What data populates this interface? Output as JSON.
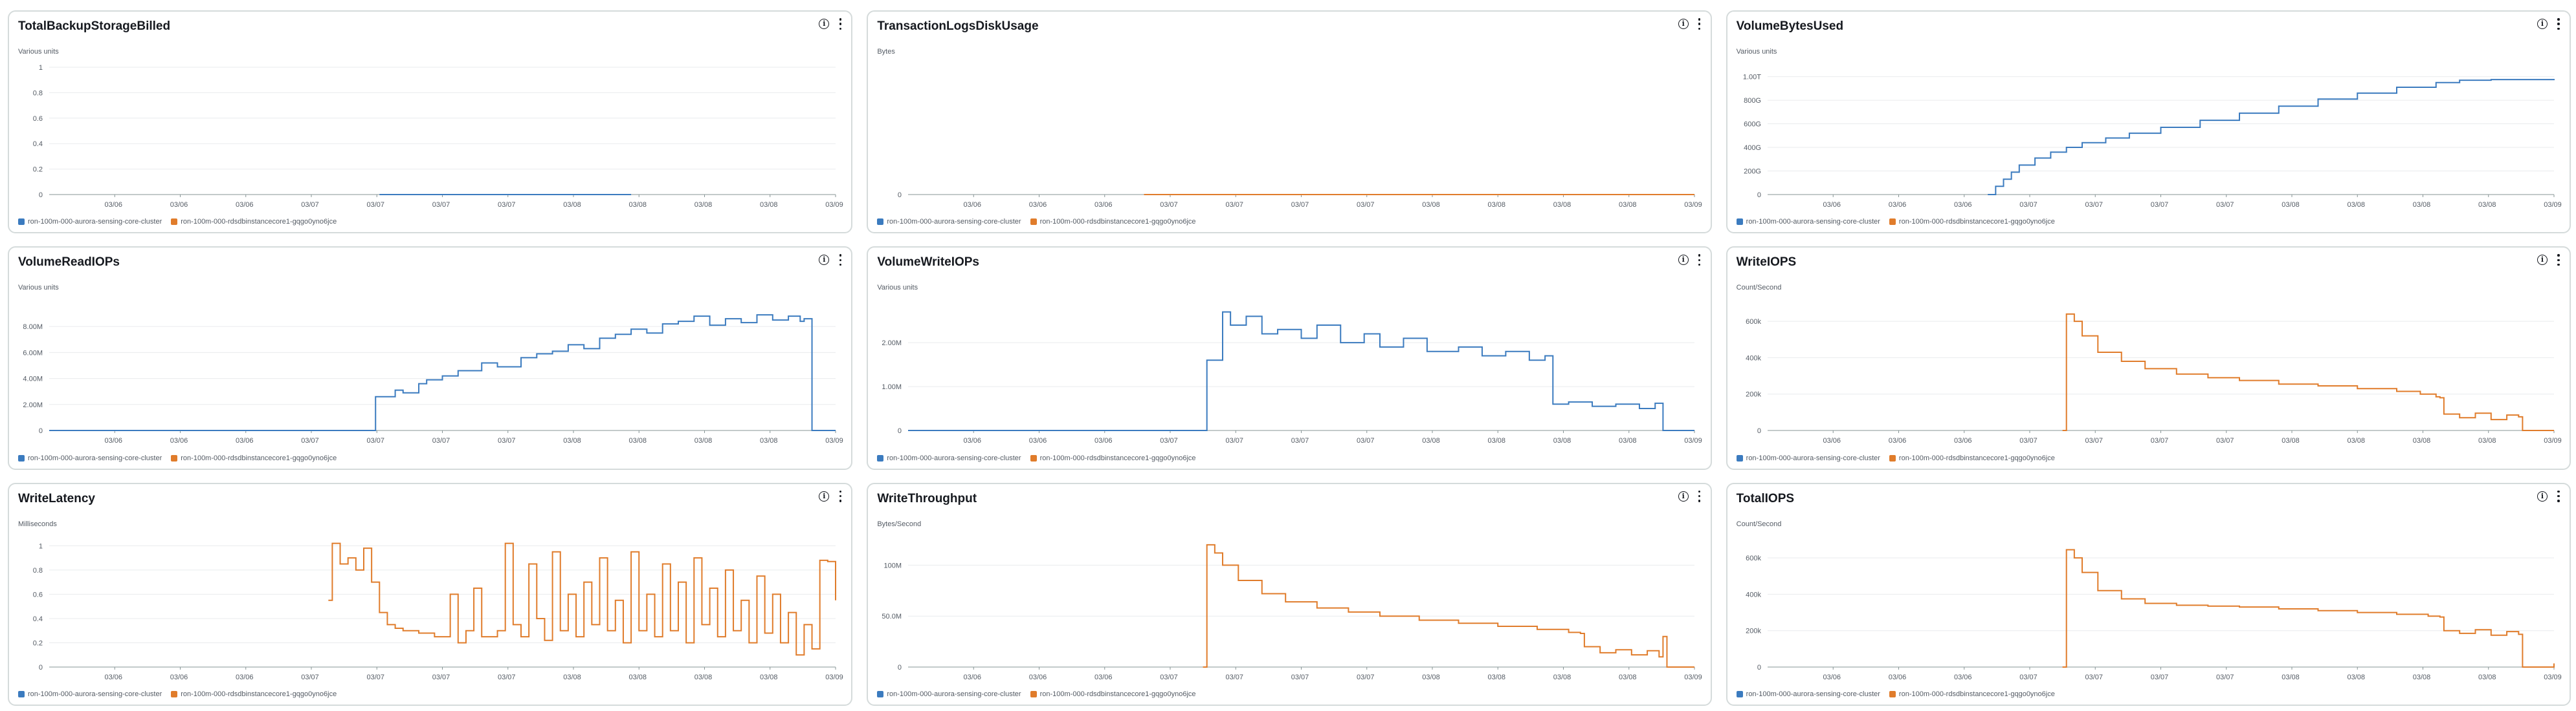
{
  "colors": {
    "series_blue": "#3b7bbf",
    "series_orange": "#e07c2b"
  },
  "legend": [
    {
      "label": "ron-100m-000-aurora-sensing-core-cluster",
      "color": "#3b7bbf"
    },
    {
      "label": "ron-100m-000-rdsdbinstancecore1-gqgo0yno6jce",
      "color": "#e07c2b"
    }
  ],
  "x_ticks": [
    "03/06",
    "03/06",
    "03/06",
    "03/07",
    "03/07",
    "03/07",
    "03/07",
    "03/08",
    "03/08",
    "03/08",
    "03/08",
    "03/09"
  ],
  "panels": [
    {
      "title": "TotalBackupStorageBilled",
      "unit": "Various units",
      "chart_data": {
        "type": "line",
        "ylim": [
          0,
          1
        ],
        "y_ticks": [
          "0",
          "0.2",
          "0.4",
          "0.6",
          "0.8",
          "1"
        ],
        "series": [
          {
            "name": "ron-100m-000-aurora-sensing-core-cluster",
            "color": "#3b7bbf",
            "x": [
              0.42,
              0.74
            ],
            "y": [
              0,
              0
            ]
          }
        ]
      }
    },
    {
      "title": "TransactionLogsDiskUsage",
      "unit": "Bytes",
      "chart_data": {
        "type": "line",
        "ylim": [
          0,
          1
        ],
        "y_ticks": [
          "0"
        ],
        "series": [
          {
            "name": "ron-100m-000-rdsdbinstancecore1-gqgo0yno6jce",
            "color": "#e07c2b",
            "x": [
              0.3,
              1.0
            ],
            "y": [
              0,
              0
            ]
          }
        ]
      }
    },
    {
      "title": "VolumeBytesUsed",
      "unit": "Various units",
      "chart_data": {
        "type": "line",
        "ylim": [
          0,
          1.08
        ],
        "y_ticks": [
          "0",
          "200G",
          "400G",
          "600G",
          "800G",
          "1.00T"
        ],
        "series": [
          {
            "name": "ron-100m-000-aurora-sensing-core-cluster",
            "color": "#3b7bbf",
            "x": [
              0.28,
              0.29,
              0.3,
              0.31,
              0.32,
              0.34,
              0.36,
              0.38,
              0.4,
              0.43,
              0.46,
              0.5,
              0.55,
              0.6,
              0.65,
              0.7,
              0.75,
              0.8,
              0.85,
              0.88,
              0.92,
              0.96,
              1.0
            ],
            "y": [
              0,
              0.07,
              0.13,
              0.19,
              0.25,
              0.31,
              0.36,
              0.4,
              0.44,
              0.48,
              0.52,
              0.57,
              0.63,
              0.69,
              0.75,
              0.81,
              0.86,
              0.91,
              0.95,
              0.97,
              0.975,
              0.975,
              0.97
            ]
          }
        ]
      }
    },
    {
      "title": "VolumeReadIOPs",
      "unit": "Various units",
      "chart_data": {
        "type": "line",
        "ylim": [
          0,
          9.8
        ],
        "y_ticks": [
          "0",
          "2.00M",
          "4.00M",
          "6.00M",
          "8.00M"
        ],
        "series": [
          {
            "name": "ron-100m-000-aurora-sensing-core-cluster",
            "color": "#3b7bbf",
            "x": [
              0.0,
              0.41,
              0.415,
              0.44,
              0.45,
              0.47,
              0.48,
              0.5,
              0.52,
              0.55,
              0.57,
              0.6,
              0.62,
              0.64,
              0.66,
              0.68,
              0.7,
              0.72,
              0.74,
              0.76,
              0.78,
              0.8,
              0.82,
              0.84,
              0.86,
              0.88,
              0.9,
              0.92,
              0.94,
              0.955,
              0.96,
              0.97,
              1.0
            ],
            "y": [
              0,
              0,
              2.6,
              3.1,
              2.9,
              3.6,
              3.9,
              4.2,
              4.6,
              5.2,
              4.9,
              5.6,
              5.9,
              6.1,
              6.6,
              6.3,
              7.1,
              7.4,
              7.8,
              7.5,
              8.2,
              8.4,
              8.8,
              8.1,
              8.6,
              8.3,
              8.9,
              8.5,
              8.8,
              8.4,
              8.6,
              0,
              0
            ]
          }
        ]
      }
    },
    {
      "title": "VolumeWriteIOPs",
      "unit": "Various units",
      "chart_data": {
        "type": "line",
        "ylim": [
          0,
          2.9
        ],
        "y_ticks": [
          "0",
          "1.00M",
          "2.00M"
        ],
        "series": [
          {
            "name": "ron-100m-000-aurora-sensing-core-cluster",
            "color": "#3b7bbf",
            "x": [
              0.0,
              0.375,
              0.38,
              0.4,
              0.41,
              0.43,
              0.45,
              0.47,
              0.5,
              0.52,
              0.55,
              0.58,
              0.6,
              0.63,
              0.66,
              0.7,
              0.73,
              0.76,
              0.79,
              0.81,
              0.82,
              0.84,
              0.87,
              0.9,
              0.93,
              0.95,
              0.96,
              1.0
            ],
            "y": [
              0,
              0,
              1.6,
              2.7,
              2.4,
              2.6,
              2.2,
              2.3,
              2.1,
              2.4,
              2.0,
              2.2,
              1.9,
              2.1,
              1.8,
              1.9,
              1.7,
              1.8,
              1.6,
              1.7,
              0.6,
              0.65,
              0.55,
              0.6,
              0.5,
              0.62,
              0,
              0
            ]
          }
        ]
      }
    },
    {
      "title": "WriteIOPS",
      "unit": "Count/Second",
      "chart_data": {
        "type": "line",
        "ylim": [
          0,
          700
        ],
        "y_ticks": [
          "0",
          "200k",
          "400k",
          "600k"
        ],
        "series": [
          {
            "name": "ron-100m-000-rdsdbinstancecore1-gqgo0yno6jce",
            "color": "#e07c2b",
            "x": [
              0.375,
              0.38,
              0.39,
              0.4,
              0.42,
              0.45,
              0.48,
              0.52,
              0.56,
              0.6,
              0.65,
              0.7,
              0.75,
              0.8,
              0.83,
              0.85,
              0.855,
              0.86,
              0.88,
              0.9,
              0.92,
              0.94,
              0.955,
              0.96,
              1.0
            ],
            "y": [
              0,
              640,
              600,
              520,
              430,
              380,
              340,
              310,
              290,
              275,
              255,
              245,
              230,
              215,
              200,
              185,
              180,
              90,
              70,
              95,
              60,
              85,
              75,
              0,
              0
            ]
          }
        ]
      }
    },
    {
      "title": "WriteLatency",
      "unit": "Milliseconds",
      "chart_data": {
        "type": "line",
        "ylim": [
          0,
          1.05
        ],
        "y_ticks": [
          "0",
          "0.2",
          "0.4",
          "0.6",
          "0.8",
          "1"
        ],
        "series": [
          {
            "name": "ron-100m-000-rdsdbinstancecore1-gqgo0yno6jce",
            "color": "#e07c2b",
            "x": [
              0.355,
              0.36,
              0.37,
              0.38,
              0.39,
              0.4,
              0.41,
              0.42,
              0.43,
              0.44,
              0.45,
              0.47,
              0.49,
              0.51,
              0.52,
              0.53,
              0.54,
              0.55,
              0.57,
              0.58,
              0.59,
              0.6,
              0.61,
              0.62,
              0.63,
              0.64,
              0.65,
              0.66,
              0.67,
              0.68,
              0.69,
              0.7,
              0.71,
              0.72,
              0.73,
              0.74,
              0.75,
              0.76,
              0.77,
              0.78,
              0.79,
              0.8,
              0.81,
              0.82,
              0.83,
              0.84,
              0.85,
              0.86,
              0.87,
              0.88,
              0.89,
              0.9,
              0.91,
              0.92,
              0.93,
              0.94,
              0.95,
              0.96,
              0.97,
              0.98,
              0.99,
              1.0
            ],
            "y": [
              0.55,
              1.02,
              0.85,
              0.9,
              0.8,
              0.98,
              0.7,
              0.45,
              0.35,
              0.32,
              0.3,
              0.28,
              0.25,
              0.6,
              0.2,
              0.3,
              0.65,
              0.25,
              0.3,
              1.02,
              0.35,
              0.25,
              0.85,
              0.4,
              0.22,
              0.95,
              0.3,
              0.6,
              0.25,
              0.7,
              0.35,
              0.9,
              0.3,
              0.55,
              0.2,
              0.95,
              0.3,
              0.6,
              0.25,
              0.85,
              0.3,
              0.7,
              0.2,
              0.9,
              0.35,
              0.65,
              0.25,
              0.8,
              0.3,
              0.55,
              0.2,
              0.75,
              0.28,
              0.6,
              0.2,
              0.45,
              0.1,
              0.35,
              0.15,
              0.88,
              0.87,
              0.55
            ]
          }
        ]
      }
    },
    {
      "title": "WriteThroughput",
      "unit": "Bytes/Second",
      "chart_data": {
        "type": "line",
        "ylim": [
          0,
          125
        ],
        "y_ticks": [
          "0",
          "50.0M",
          "100M"
        ],
        "series": [
          {
            "name": "ron-100m-000-rdsdbinstancecore1-gqgo0yno6jce",
            "color": "#e07c2b",
            "x": [
              0.375,
              0.38,
              0.39,
              0.4,
              0.42,
              0.45,
              0.48,
              0.52,
              0.56,
              0.6,
              0.65,
              0.7,
              0.75,
              0.8,
              0.84,
              0.855,
              0.86,
              0.88,
              0.9,
              0.92,
              0.94,
              0.955,
              0.96,
              0.965,
              1.0
            ],
            "y": [
              0,
              120,
              112,
              100,
              85,
              72,
              64,
              58,
              54,
              50,
              46,
              43,
              40,
              37,
              34,
              33,
              20,
              14,
              17,
              12,
              16,
              10,
              30,
              0,
              0
            ]
          }
        ]
      }
    },
    {
      "title": "TotalIOPS",
      "unit": "Count/Second",
      "chart_data": {
        "type": "line",
        "ylim": [
          0,
          700
        ],
        "y_ticks": [
          "0",
          "200k",
          "400k",
          "600k"
        ],
        "series": [
          {
            "name": "ron-100m-000-rdsdbinstancecore1-gqgo0yno6jce",
            "color": "#e07c2b",
            "x": [
              0.375,
              0.38,
              0.39,
              0.4,
              0.42,
              0.45,
              0.48,
              0.52,
              0.56,
              0.6,
              0.65,
              0.7,
              0.75,
              0.8,
              0.84,
              0.855,
              0.86,
              0.88,
              0.9,
              0.92,
              0.94,
              0.955,
              0.96,
              0.97,
              1.0
            ],
            "y": [
              0,
              645,
              600,
              520,
              420,
              375,
              350,
              340,
              335,
              330,
              320,
              310,
              300,
              290,
              280,
              275,
              200,
              185,
              205,
              175,
              195,
              180,
              0,
              0,
              20
            ]
          }
        ]
      }
    }
  ]
}
